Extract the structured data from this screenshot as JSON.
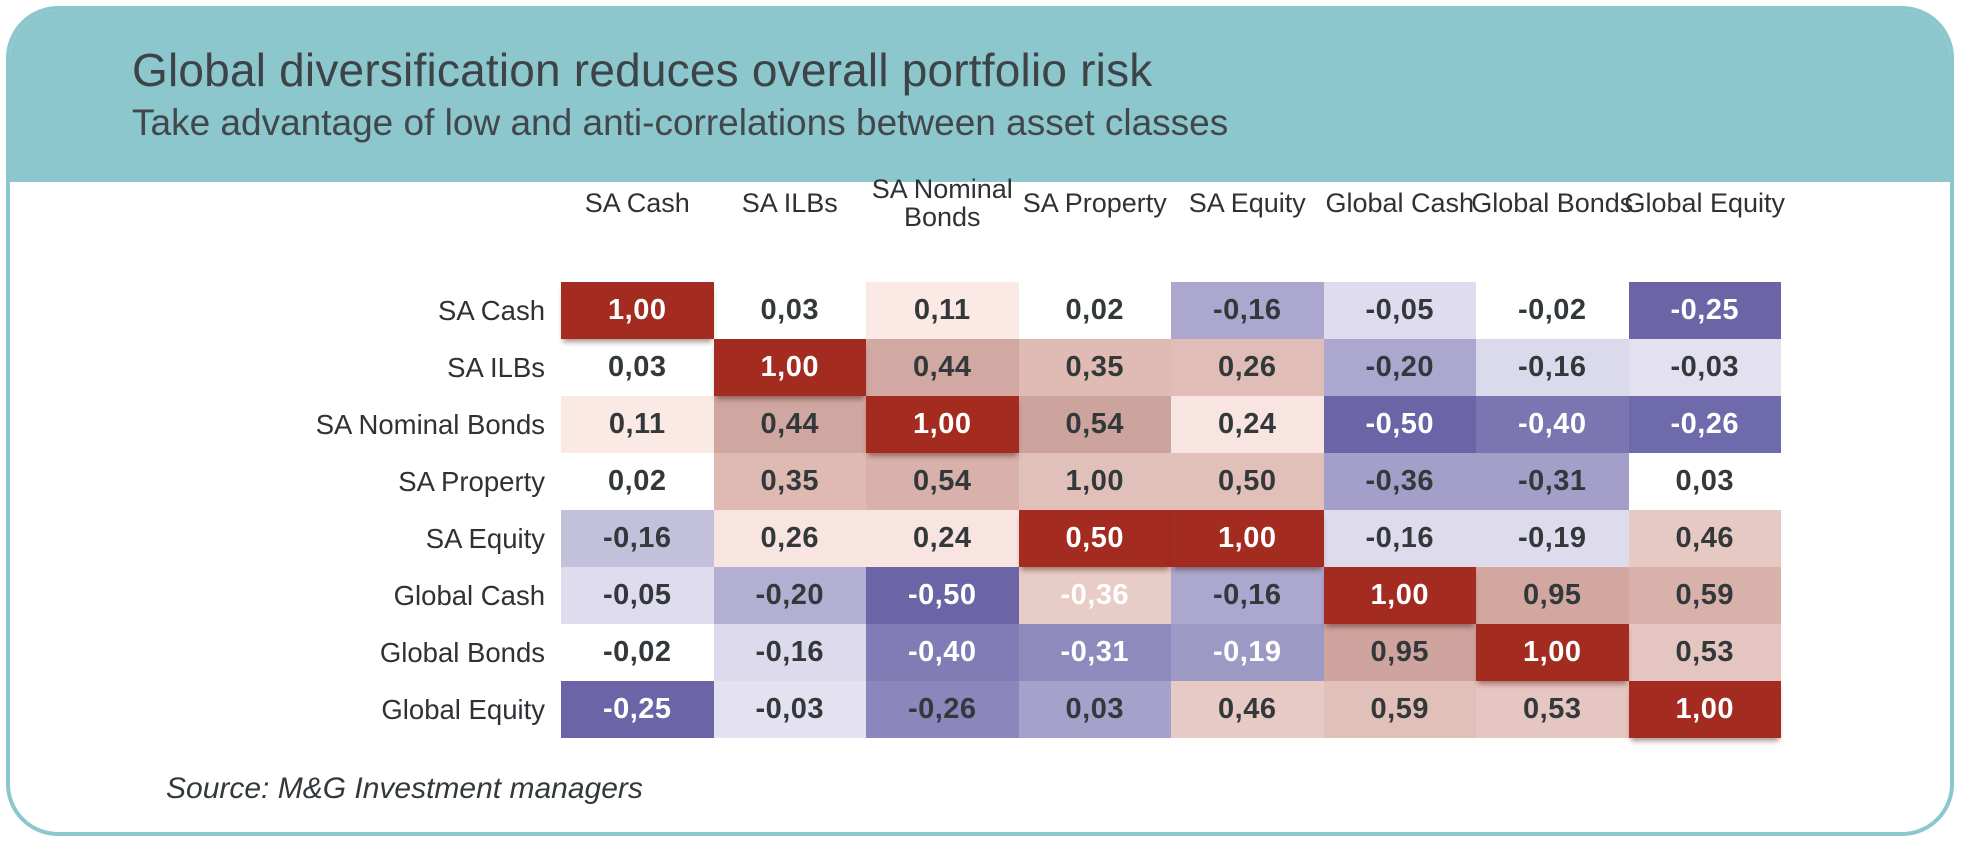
{
  "header": {
    "title": "Global diversification reduces overall portfolio risk",
    "subtitle": "Take advantage of low and anti-correlations between asset classes",
    "background": "#8CC7CD",
    "text_color": "#3E4347"
  },
  "source": {
    "label": "Source: M&G Investment managers"
  },
  "palette": {
    "card_border_teal": "#8CC7CD",
    "diagonal_red": "#A32B20",
    "text_dark": "#33383B",
    "text_white": "#FFFFFF"
  },
  "chart_data": {
    "type": "heatmap",
    "title": "Global diversification reduces overall portfolio risk",
    "subtitle": "Take advantage of low and anti-correlations between asset classes",
    "source": "Source: M&G Investment managers",
    "value_format": "two decimals with decimal comma (e.g. -0,25)",
    "legend_position": "none",
    "color_scale": "positive correlations shaded red/pink toward #A32B20, negative shaded purple toward #6B65A8, near-zero white",
    "columns": [
      {
        "label": "SA Cash",
        "two_line": false
      },
      {
        "label": "SA ILBs",
        "two_line": false
      },
      {
        "label": "SA Nominal Bonds",
        "two_line": true
      },
      {
        "label": "SA Property",
        "two_line": false
      },
      {
        "label": "SA Equity",
        "two_line": false
      },
      {
        "label": "Global Cash",
        "two_line": false
      },
      {
        "label": "Global Bonds",
        "two_line": false
      },
      {
        "label": "Global Equity",
        "two_line": false
      }
    ],
    "rows": [
      "SA Cash",
      "SA ILBs",
      "SA Nominal Bonds",
      "SA Property",
      "SA Equity",
      "Global Cash",
      "Global Bonds",
      "Global Equity"
    ],
    "matrix": [
      [
        1.0,
        0.03,
        0.11,
        0.02,
        -0.16,
        -0.05,
        -0.02,
        -0.25
      ],
      [
        0.03,
        1.0,
        0.44,
        0.35,
        0.26,
        -0.2,
        -0.16,
        -0.03
      ],
      [
        0.11,
        0.44,
        1.0,
        0.54,
        0.24,
        -0.5,
        -0.4,
        -0.26
      ],
      [
        0.02,
        0.35,
        0.54,
        1.0,
        0.5,
        -0.36,
        -0.31,
        0.03
      ],
      [
        -0.16,
        0.26,
        0.24,
        0.5,
        1.0,
        -0.16,
        -0.19,
        0.46
      ],
      [
        -0.05,
        -0.2,
        -0.5,
        -0.36,
        -0.16,
        1.0,
        0.95,
        0.59
      ],
      [
        -0.02,
        -0.16,
        -0.4,
        -0.31,
        -0.19,
        0.95,
        1.0,
        0.53
      ],
      [
        -0.25,
        -0.03,
        -0.26,
        0.03,
        0.46,
        0.59,
        0.53,
        1.0
      ]
    ],
    "cell_bg": [
      [
        "#A32B20",
        "#FFFFFF",
        "#FBE9E6",
        "#FFFFFF",
        "#ABA7CE",
        "#DEDCEE",
        "#FFFFFF",
        "#6B65A8"
      ],
      [
        "#FFFFFF",
        "#A32B20",
        "#D1A8A2",
        "#DFBBB4",
        "#E0BDB6",
        "#ABA7CE",
        "#DBD9EC",
        "#E3E1F0"
      ],
      [
        "#FBE9E6",
        "#CFA6A0",
        "#A32B20",
        "#CCA49D",
        "#F8E4E1",
        "#6B65A8",
        "#7B76B1",
        "#6F6AAB"
      ],
      [
        "#FFFFFF",
        "#DFBAB3",
        "#D8B1AA",
        "#E2C0BA",
        "#E2C0BA",
        "#A39FC8",
        "#A39FC8",
        "#FFFFFF"
      ],
      [
        "#C3C0DC",
        "#F8E4E1",
        "#F8E4E1",
        "#A32B20",
        "#A32B20",
        "#DDDBEC",
        "#DDDBEC",
        "#E7C9C3"
      ],
      [
        "#DEDCEE",
        "#B3AFD3",
        "#6B65A8",
        "#E8CCC6",
        "#ABA7CE",
        "#A32B20",
        "#D1A7A0",
        "#D8B1AA"
      ],
      [
        "#FFFFFF",
        "#DCDAEC",
        "#817CB6",
        "#8F8ABE",
        "#9D99C5",
        "#CFA49E",
        "#A32B20",
        "#E5C5BF"
      ],
      [
        "#6B65A8",
        "#E4E2F1",
        "#8B86BB",
        "#A5A1CB",
        "#E8CAC4",
        "#E2C0BA",
        "#E6C6C0",
        "#A32B20"
      ]
    ],
    "cell_fg": [
      [
        "w",
        "d",
        "d",
        "d",
        "d",
        "d",
        "d",
        "w"
      ],
      [
        "d",
        "w",
        "d",
        "d",
        "d",
        "d",
        "d",
        "d"
      ],
      [
        "d",
        "d",
        "w",
        "d",
        "d",
        "w",
        "w",
        "w"
      ],
      [
        "d",
        "d",
        "d",
        "d",
        "d",
        "d",
        "d",
        "d"
      ],
      [
        "d",
        "d",
        "d",
        "w",
        "w",
        "d",
        "d",
        "d"
      ],
      [
        "d",
        "d",
        "w",
        "w",
        "d",
        "w",
        "d",
        "d"
      ],
      [
        "d",
        "d",
        "w",
        "w",
        "w",
        "d",
        "w",
        "d"
      ],
      [
        "w",
        "d",
        "d",
        "d",
        "d",
        "d",
        "d",
        "w"
      ]
    ]
  }
}
